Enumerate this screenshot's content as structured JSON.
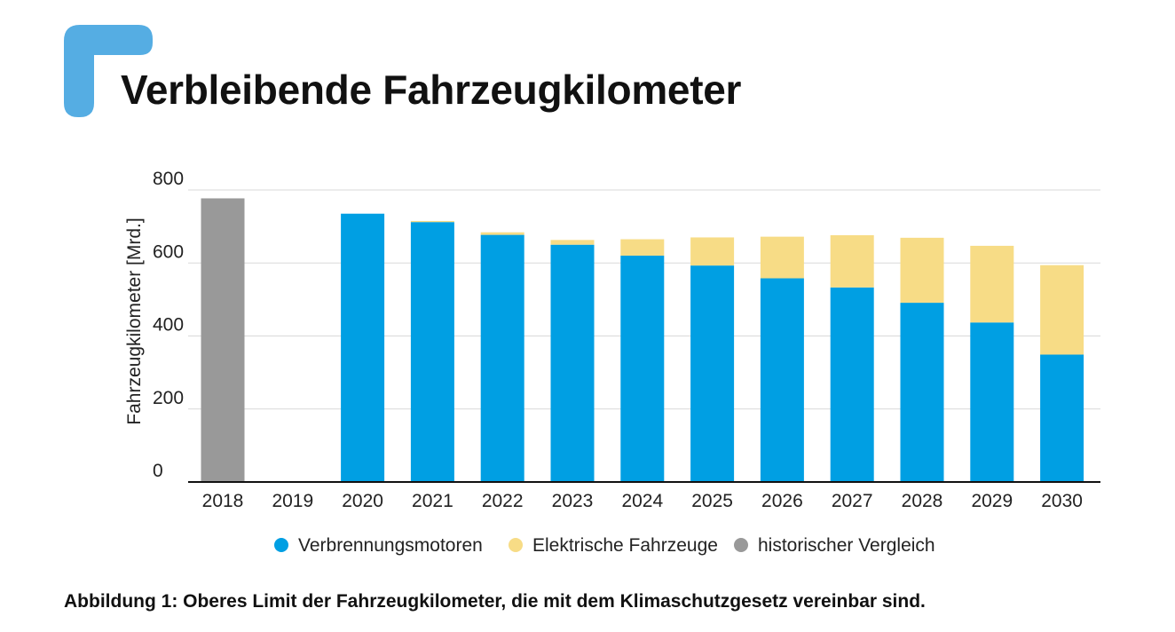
{
  "header": {
    "title": "Verbleibende Fahrzeugkilometer",
    "logo_color": "#55ade3"
  },
  "caption": "Abbildung 1: Oberes Limit der Fahrzeugkilometer, die mit dem Klimaschutzgesetz vereinbar sind.",
  "chart_data": {
    "type": "bar",
    "stacked": true,
    "title": "Verbleibende Fahrzeugkilometer",
    "xlabel": "",
    "ylabel": "Fahrzeugkilometer [Mrd.]",
    "ylim": [
      0,
      800
    ],
    "yticks": [
      0,
      200,
      400,
      600,
      800
    ],
    "grid": true,
    "legend_position": "bottom",
    "categories": [
      "2018",
      "2019",
      "2020",
      "2021",
      "2022",
      "2023",
      "2024",
      "2025",
      "2026",
      "2027",
      "2028",
      "2029",
      "2030"
    ],
    "series": [
      {
        "name": "Verbrennungsmotoren",
        "color": "#009fe3",
        "values": [
          0,
          0,
          735,
          712,
          677,
          650,
          620,
          593,
          558,
          533,
          491,
          437,
          349
        ]
      },
      {
        "name": "Elektrische Fahrzeuge",
        "color": "#f7dc86",
        "values": [
          0,
          0,
          0,
          3,
          7,
          13,
          45,
          77,
          114,
          143,
          178,
          210,
          245
        ]
      },
      {
        "name": "historischer Vergleich",
        "color": "#999999",
        "values": [
          777,
          0,
          0,
          0,
          0,
          0,
          0,
          0,
          0,
          0,
          0,
          0,
          0
        ]
      }
    ]
  }
}
